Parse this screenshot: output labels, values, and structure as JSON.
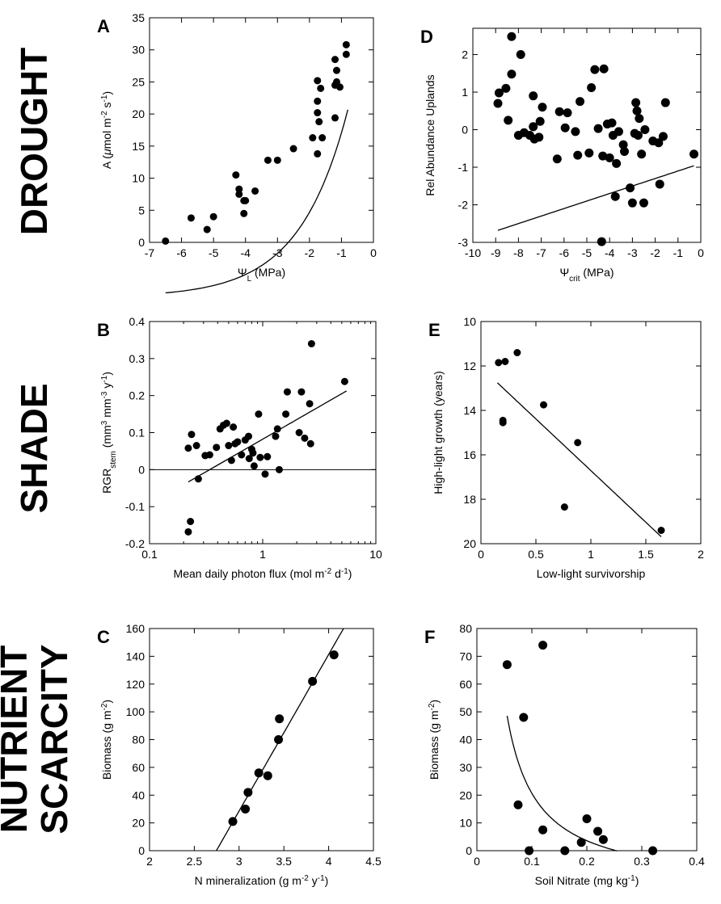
{
  "row_labels": [
    {
      "lines": [
        "DROUGHT"
      ],
      "rows": [
        0
      ]
    },
    {
      "lines": [
        "SHADE"
      ],
      "rows": [
        1
      ]
    },
    {
      "lines": [
        "NUTRIENT",
        "SCARCITY"
      ],
      "rows": [
        2
      ]
    }
  ],
  "chart_data": [
    {
      "id": "A",
      "letter": "A",
      "type": "scatter",
      "xlabel": "Ψ",
      "xlabel_sub": "L",
      "xlabel_rest": " (MPa)",
      "ylabel": [
        {
          "t": "A ("
        },
        {
          "t": "μ",
          "italic": true
        },
        {
          "t": "mol m"
        },
        {
          "t": "-2",
          "sup": true
        },
        {
          "t": " s"
        },
        {
          "t": "-1",
          "sup": true
        },
        {
          "t": ")"
        }
      ],
      "xlim": [
        -7,
        0
      ],
      "ylim": [
        0,
        35
      ],
      "xticks": [
        -7,
        -6,
        -5,
        -4,
        -3,
        -2,
        -1,
        0
      ],
      "xtick_labels": [
        "-7",
        "-6",
        "-5",
        "-4",
        "-3",
        "-2",
        "-1",
        "0"
      ],
      "yticks": [
        0,
        5,
        10,
        15,
        20,
        25,
        30,
        35
      ],
      "ytick_labels": [
        "0",
        "5",
        "10",
        "15",
        "20",
        "25",
        "30",
        "35"
      ],
      "marker_radius": 4.5,
      "points": [
        [
          -6.5,
          0.2
        ],
        [
          -5.7,
          3.8
        ],
        [
          -5.2,
          2
        ],
        [
          -5,
          4
        ],
        [
          -4.3,
          10.5
        ],
        [
          -4.2,
          8.3
        ],
        [
          -4.2,
          7.5
        ],
        [
          -4.05,
          6.5
        ],
        [
          -4,
          6.5
        ],
        [
          -4.05,
          4.5
        ],
        [
          -3.7,
          8
        ],
        [
          -3.3,
          12.8
        ],
        [
          -3,
          12.8
        ],
        [
          -2.5,
          14.6
        ],
        [
          -1.9,
          16.3
        ],
        [
          -1.75,
          13.8
        ],
        [
          -1.75,
          20.2
        ],
        [
          -1.75,
          22
        ],
        [
          -1.75,
          25.2
        ],
        [
          -1.7,
          18.8
        ],
        [
          -1.65,
          24
        ],
        [
          -1.6,
          16.3
        ],
        [
          -1.2,
          19.4
        ],
        [
          -1.2,
          24.5
        ],
        [
          -1.2,
          28.5
        ],
        [
          -1.15,
          26.8
        ],
        [
          -1.15,
          25
        ],
        [
          -1.05,
          24.2
        ],
        [
          -0.85,
          30.8
        ],
        [
          -0.85,
          29.3
        ]
      ],
      "fit": {
        "kind": "exp",
        "a": 30.2,
        "b": 0.66,
        "c": -0.75,
        "d": -8.55,
        "x0": -6.5,
        "x1": -0.8
      }
    },
    {
      "id": "D",
      "letter": "D",
      "type": "scatter",
      "xlabel": "Ψ",
      "xlabel_sub": "crit",
      "xlabel_rest": " (MPa)",
      "ylabel": [
        {
          "t": "Rel Abundance Uplands"
        }
      ],
      "xlim": [
        -10,
        0
      ],
      "ylim": [
        -3,
        2.7
      ],
      "xticks": [
        -10,
        -9,
        -8,
        -7,
        -6,
        -5,
        -4,
        -3,
        -2,
        -1,
        0
      ],
      "xtick_labels": [
        "-10",
        "-9",
        "-8",
        "-7",
        "-6",
        "-5",
        "-4",
        "-3",
        "-2",
        "-1",
        "0"
      ],
      "yticks": [
        -3,
        -2,
        -1,
        0,
        1,
        2
      ],
      "ytick_labels": [
        "-3",
        "-2",
        "-1",
        "0",
        "1",
        "2"
      ],
      "marker_radius": 5.5,
      "points": [
        [
          -8.9,
          0.7
        ],
        [
          -8.85,
          0.98
        ],
        [
          -8.55,
          1.1
        ],
        [
          -8.45,
          0.25
        ],
        [
          -8.3,
          2.48
        ],
        [
          -8.3,
          1.48
        ],
        [
          -8,
          -0.15
        ],
        [
          -7.9,
          2
        ],
        [
          -7.75,
          -0.08
        ],
        [
          -7.5,
          -0.15
        ],
        [
          -7.35,
          0.9
        ],
        [
          -7.35,
          0.08
        ],
        [
          -7.3,
          -0.25
        ],
        [
          -7.1,
          -0.2
        ],
        [
          -7.05,
          0.22
        ],
        [
          -6.95,
          0.6
        ],
        [
          -6.3,
          -0.78
        ],
        [
          -6.2,
          0.48
        ],
        [
          -5.95,
          0.05
        ],
        [
          -5.85,
          0.45
        ],
        [
          -5.5,
          -0.05
        ],
        [
          -5.4,
          -0.68
        ],
        [
          -5.3,
          0.75
        ],
        [
          -4.9,
          -0.62
        ],
        [
          -4.8,
          1.12
        ],
        [
          -4.65,
          1.6
        ],
        [
          -4.5,
          0.03
        ],
        [
          -4.35,
          -2.98
        ],
        [
          -4.3,
          -0.7
        ],
        [
          -4.25,
          1.62
        ],
        [
          -4.1,
          0.15
        ],
        [
          -4,
          -0.75
        ],
        [
          -3.9,
          0.18
        ],
        [
          -3.85,
          -0.15
        ],
        [
          -3.75,
          -1.78
        ],
        [
          -3.7,
          -0.9
        ],
        [
          -3.6,
          -0.05
        ],
        [
          -3.4,
          -0.4
        ],
        [
          -3.35,
          -0.58
        ],
        [
          -3.1,
          -1.55
        ],
        [
          -3,
          -1.95
        ],
        [
          -2.9,
          -0.1
        ],
        [
          -2.85,
          0.72
        ],
        [
          -2.8,
          0.5
        ],
        [
          -2.75,
          -0.15
        ],
        [
          -2.7,
          0.3
        ],
        [
          -2.6,
          -0.65
        ],
        [
          -2.5,
          -1.95
        ],
        [
          -2.45,
          0
        ],
        [
          -2.1,
          -0.3
        ],
        [
          -1.85,
          -0.35
        ],
        [
          -1.8,
          -1.45
        ],
        [
          -1.65,
          -0.18
        ],
        [
          -1.55,
          0.72
        ],
        [
          -0.3,
          -0.65
        ]
      ],
      "fit": {
        "kind": "line",
        "m": 0.2,
        "b": -0.9,
        "x0": -8.9,
        "x1": -0.3
      }
    },
    {
      "id": "B",
      "letter": "B",
      "type": "scatter",
      "xlabel": "Mean daily photon flux (mol m",
      "xlabel_sup1": "-2",
      "xlabel_mid": " d",
      "xlabel_sup2": "-1",
      "xlabel_end": ")",
      "ylabel": [
        {
          "t": "RGR"
        },
        {
          "t": "stem",
          "sub": true
        },
        {
          "t": " (mm"
        },
        {
          "t": "3",
          "sup": true
        },
        {
          "t": " mm"
        },
        {
          "t": "-3",
          "sup": true
        },
        {
          "t": " y"
        },
        {
          "t": "-1",
          "sup": true
        },
        {
          "t": ")"
        }
      ],
      "xscale": "log",
      "xlim": [
        0.1,
        10
      ],
      "ylim": [
        -0.2,
        0.4
      ],
      "xticks": [
        0.1,
        1,
        10
      ],
      "xtick_labels": [
        "0.1",
        "1",
        "10"
      ],
      "yticks": [
        -0.2,
        -0.1,
        0,
        0.1,
        0.2,
        0.3,
        0.4
      ],
      "ytick_labels": [
        "-0.2",
        "-0.1",
        "0",
        "0.1",
        "0.2",
        "0.3",
        "0.4"
      ],
      "marker_radius": 4.5,
      "points": [
        [
          0.22,
          -0.168
        ],
        [
          0.23,
          -0.14
        ],
        [
          0.22,
          0.058
        ],
        [
          0.235,
          0.095
        ],
        [
          0.26,
          0.065
        ],
        [
          0.27,
          -0.025
        ],
        [
          0.31,
          0.038
        ],
        [
          0.34,
          0.04
        ],
        [
          0.39,
          0.06
        ],
        [
          0.42,
          0.11
        ],
        [
          0.45,
          0.12
        ],
        [
          0.48,
          0.125
        ],
        [
          0.5,
          0.065
        ],
        [
          0.53,
          0.025
        ],
        [
          0.55,
          0.115
        ],
        [
          0.57,
          0.07
        ],
        [
          0.6,
          0.075
        ],
        [
          0.65,
          0.04
        ],
        [
          0.7,
          0.08
        ],
        [
          0.75,
          0.09
        ],
        [
          0.76,
          0.03
        ],
        [
          0.8,
          0.055
        ],
        [
          0.82,
          0.045
        ],
        [
          0.84,
          0.01
        ],
        [
          0.92,
          0.15
        ],
        [
          0.95,
          0.033
        ],
        [
          1.05,
          -0.012
        ],
        [
          1.1,
          0.035
        ],
        [
          1.3,
          0.09
        ],
        [
          1.35,
          0.11
        ],
        [
          1.4,
          0
        ],
        [
          1.6,
          0.15
        ],
        [
          1.65,
          0.21
        ],
        [
          2.1,
          0.1
        ],
        [
          2.2,
          0.21
        ],
        [
          2.35,
          0.085
        ],
        [
          2.6,
          0.178
        ],
        [
          2.65,
          0.07
        ],
        [
          2.7,
          0.34
        ],
        [
          5.3,
          0.238
        ]
      ],
      "hline": 0,
      "fit": {
        "kind": "line_log10",
        "m": 0.1758,
        "b": 0.0823,
        "x0": 0.22,
        "x1": 5.5
      }
    },
    {
      "id": "E",
      "letter": "E",
      "type": "scatter",
      "xlabel": "Low-light survivorship",
      "ylabel": [
        {
          "t": "High-light growth (years)"
        }
      ],
      "xlim": [
        0,
        2
      ],
      "ylim": [
        10,
        20
      ],
      "yinvert": true,
      "xticks": [
        0,
        0.5,
        1,
        1.5,
        2
      ],
      "xtick_labels": [
        "0",
        "0.5",
        "1",
        "1.5",
        "2"
      ],
      "yticks": [
        10,
        12,
        14,
        16,
        18,
        20
      ],
      "ytick_labels": [
        "10",
        "12",
        "14",
        "16",
        "18",
        "20"
      ],
      "marker_radius": 4.5,
      "points": [
        [
          0.16,
          11.85
        ],
        [
          0.2,
          14.55
        ],
        [
          0.2,
          14.45
        ],
        [
          0.22,
          11.8
        ],
        [
          0.33,
          11.4
        ],
        [
          0.57,
          13.75
        ],
        [
          0.76,
          18.35
        ],
        [
          0.88,
          15.45
        ],
        [
          1.64,
          19.4
        ]
      ],
      "fit": {
        "kind": "line",
        "m": 4.65,
        "b": 12.06,
        "x0": 0.15,
        "x1": 1.64
      }
    },
    {
      "id": "C",
      "letter": "C",
      "type": "scatter",
      "xlabel": "N mineralization (g m",
      "xlabel_sup1": "-2",
      "xlabel_mid": " y",
      "xlabel_sup2": "-1",
      "xlabel_end": ")",
      "ylabel": [
        {
          "t": "Biomass (g m"
        },
        {
          "t": "-2",
          "sup": true
        },
        {
          "t": ")"
        }
      ],
      "xlim": [
        2,
        4.5
      ],
      "ylim": [
        0,
        160
      ],
      "xticks": [
        2,
        2.5,
        3,
        3.5,
        4,
        4.5
      ],
      "xtick_labels": [
        "2",
        "2.5",
        "3",
        "3.5",
        "4",
        "4.5"
      ],
      "yticks": [
        0,
        20,
        40,
        60,
        80,
        100,
        120,
        140,
        160
      ],
      "ytick_labels": [
        "0",
        "20",
        "40",
        "60",
        "80",
        "100",
        "120",
        "140",
        "160"
      ],
      "marker_radius": 5.5,
      "points": [
        [
          2.93,
          21
        ],
        [
          3.07,
          30
        ],
        [
          3.1,
          42
        ],
        [
          3.22,
          56
        ],
        [
          3.32,
          54
        ],
        [
          3.44,
          80
        ],
        [
          3.45,
          95
        ],
        [
          3.82,
          122
        ],
        [
          4.06,
          141
        ]
      ],
      "fit": {
        "kind": "line",
        "m": 112.7,
        "b": -309.5,
        "x0": 2.745,
        "x1": 4.165
      }
    },
    {
      "id": "F",
      "letter": "F",
      "type": "scatter",
      "xlabel": "Soil Nitrate (mg kg",
      "xlabel_sup1": "-1",
      "xlabel_mid": "",
      "xlabel_sup2": "",
      "xlabel_end": ")",
      "ylabel": [
        {
          "t": "Biomass (g m"
        },
        {
          "t": "-2",
          "sup": true
        },
        {
          "t": ")"
        }
      ],
      "xlim": [
        0,
        0.4
      ],
      "ylim": [
        0,
        80
      ],
      "xticks": [
        0,
        0.1,
        0.2,
        0.3,
        0.4
      ],
      "xtick_labels": [
        "0",
        "0.1",
        "0.2",
        "0.3",
        "0.4"
      ],
      "yticks": [
        0,
        10,
        20,
        30,
        40,
        50,
        60,
        70,
        80
      ],
      "ytick_labels": [
        "0",
        "10",
        "20",
        "30",
        "40",
        "50",
        "60",
        "70",
        "80"
      ],
      "marker_radius": 5.5,
      "points": [
        [
          0.055,
          67
        ],
        [
          0.075,
          16.5
        ],
        [
          0.085,
          48
        ],
        [
          0.095,
          0
        ],
        [
          0.12,
          74
        ],
        [
          0.12,
          7.5
        ],
        [
          0.16,
          0
        ],
        [
          0.19,
          3
        ],
        [
          0.2,
          11.5
        ],
        [
          0.22,
          7
        ],
        [
          0.23,
          4
        ],
        [
          0.32,
          0
        ]
      ],
      "fit": {
        "kind": "inv",
        "a": 3.41,
        "b": -13.45,
        "x0": 0.055,
        "x1": 0.255
      }
    }
  ]
}
